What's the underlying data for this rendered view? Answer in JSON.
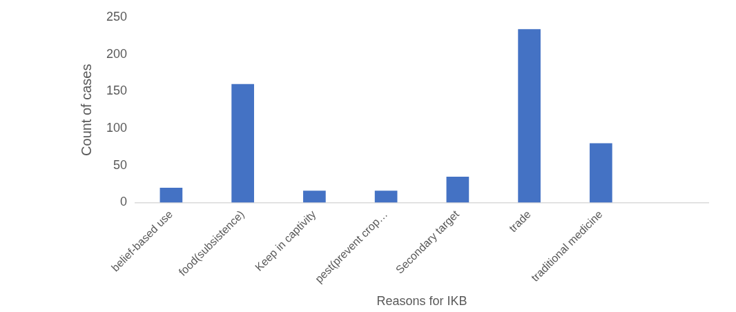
{
  "chart_data": {
    "type": "bar",
    "xlabel": "Reasons for IKB",
    "ylabel": "Count of cases",
    "categories": [
      "belief-based use",
      "food(subsistence)",
      "Keep in captivity",
      "pest(prevent crop…",
      "Secondary target",
      "trade",
      "traditional medicine",
      null
    ],
    "values": [
      20,
      160,
      16,
      16,
      35,
      234,
      80,
      null
    ],
    "color": "#4472c4",
    "ylim": [
      0,
      250
    ],
    "yticks": [
      0,
      50,
      100,
      150,
      200,
      250
    ],
    "grid": false,
    "legend": false
  }
}
